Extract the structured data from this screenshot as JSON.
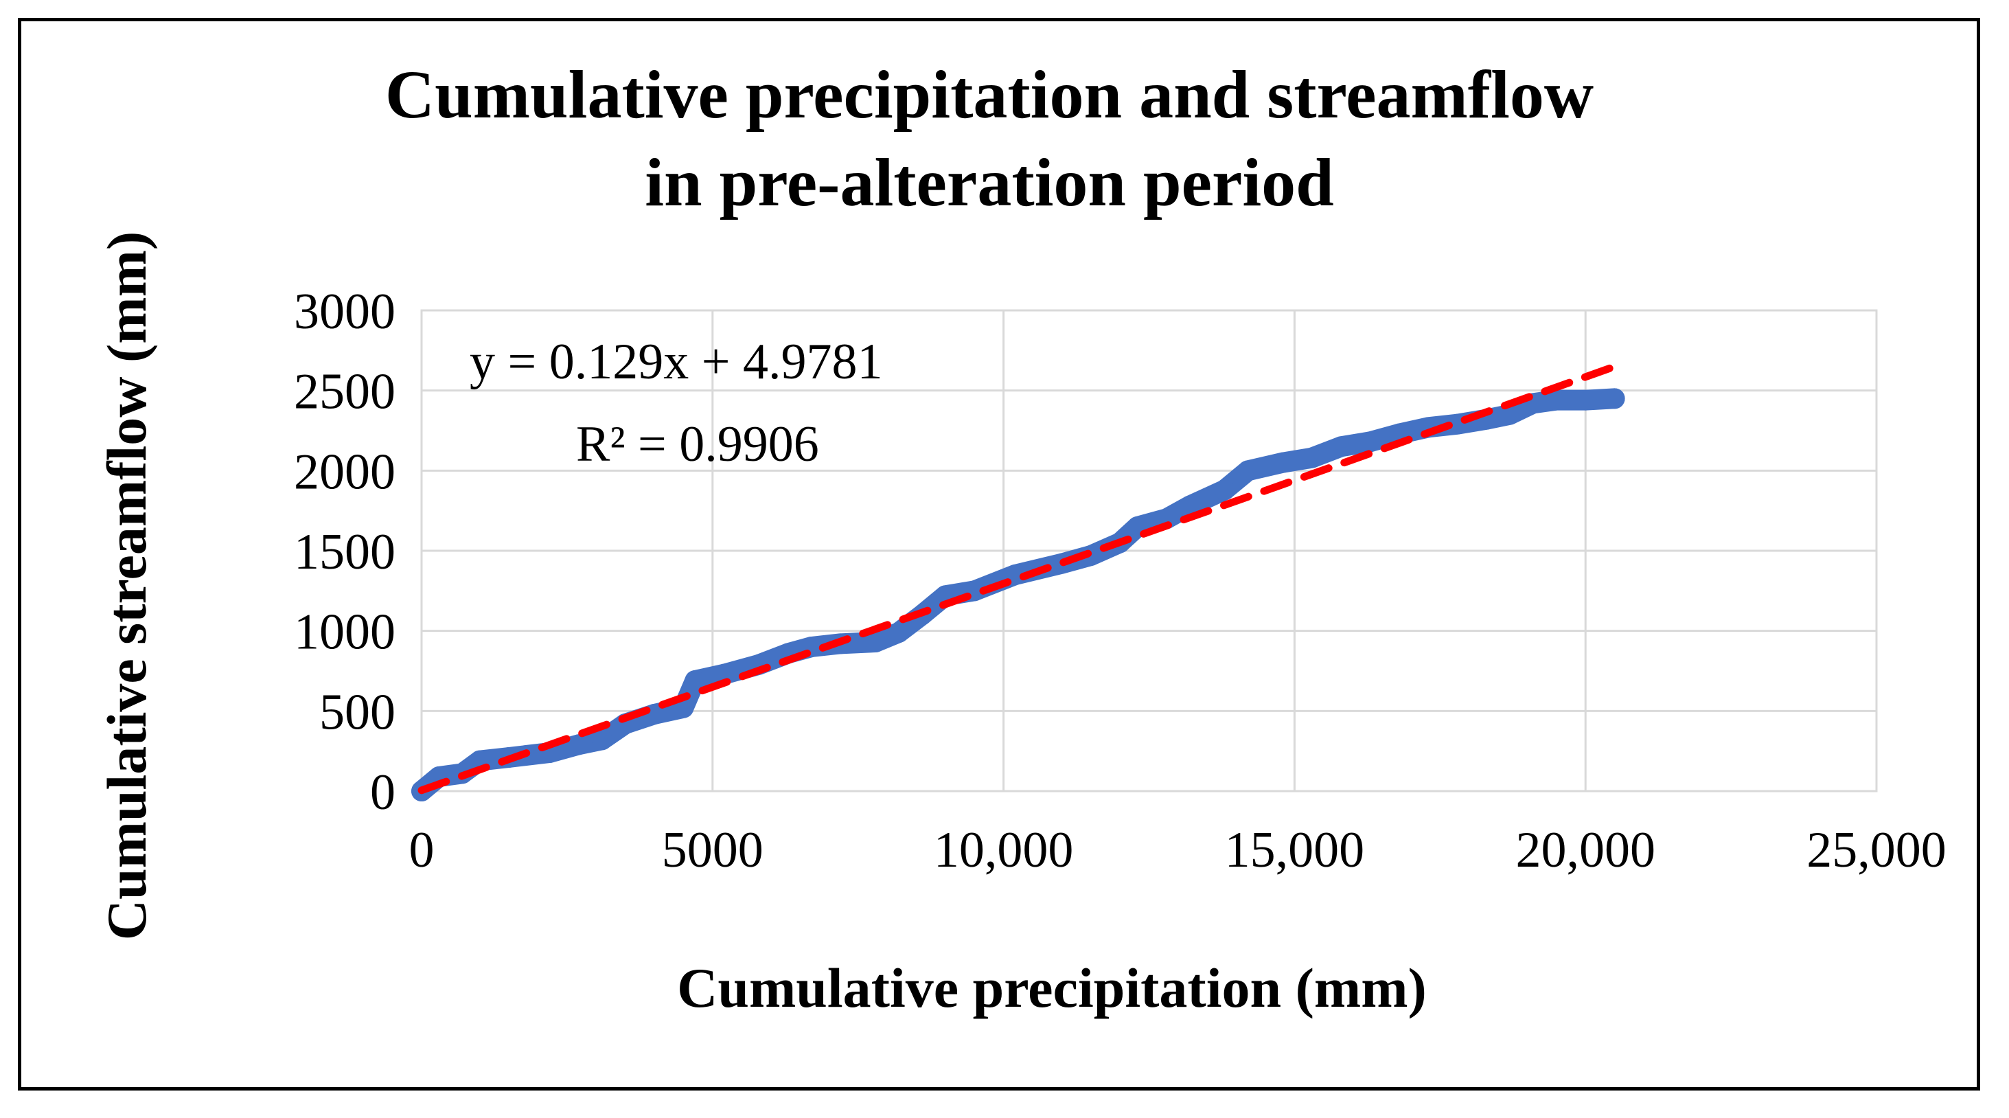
{
  "chart_data": {
    "type": "scatter",
    "title_lines": [
      "Cumulative precipitation and streamflow",
      "in pre-alteration period"
    ],
    "xlabel": "Cumulative precipitation (mm)",
    "ylabel": "Cumulative streamflow (mm)",
    "xlim": [
      0,
      25000
    ],
    "ylim": [
      0,
      3000
    ],
    "x_ticks": [
      0,
      5000,
      10000,
      15000,
      20000,
      25000
    ],
    "x_tick_labels": [
      "0",
      "5000",
      "10,000",
      "15,000",
      "20,000",
      "25,000"
    ],
    "y_ticks": [
      0,
      500,
      1000,
      1500,
      2000,
      2500,
      3000
    ],
    "y_tick_labels": [
      "0",
      "500",
      "1000",
      "1500",
      "2000",
      "2500",
      "3000"
    ],
    "grid": true,
    "series": [
      {
        "name": "Cumulative streamflow",
        "color": "#4472C4",
        "x": [
          0,
          300,
          700,
          1000,
          1500,
          2200,
          2700,
          3100,
          3500,
          4000,
          4500,
          4700,
          5200,
          5800,
          6300,
          6700,
          7200,
          7800,
          8200,
          8600,
          9000,
          9500,
          10200,
          11000,
          11500,
          12000,
          12300,
          12800,
          13200,
          13800,
          14200,
          14800,
          15300,
          15800,
          16300,
          16800,
          17300,
          17800,
          18300,
          18700,
          19100,
          19500,
          20000,
          20500
        ],
        "y": [
          0,
          90,
          110,
          190,
          210,
          240,
          290,
          320,
          420,
          480,
          520,
          690,
          730,
          790,
          860,
          900,
          920,
          930,
          990,
          1100,
          1220,
          1250,
          1350,
          1420,
          1470,
          1550,
          1650,
          1700,
          1780,
          1880,
          2000,
          2050,
          2080,
          2150,
          2180,
          2230,
          2270,
          2290,
          2320,
          2350,
          2420,
          2440,
          2440,
          2450
        ]
      }
    ],
    "trendline": {
      "type": "linear",
      "color": "#FF0000",
      "slope": 0.129,
      "intercept": 4.9781,
      "x_range": [
        0,
        20500
      ],
      "equation": "y = 0.129x + 4.9781",
      "r_squared": "R² = 0.9906"
    }
  }
}
